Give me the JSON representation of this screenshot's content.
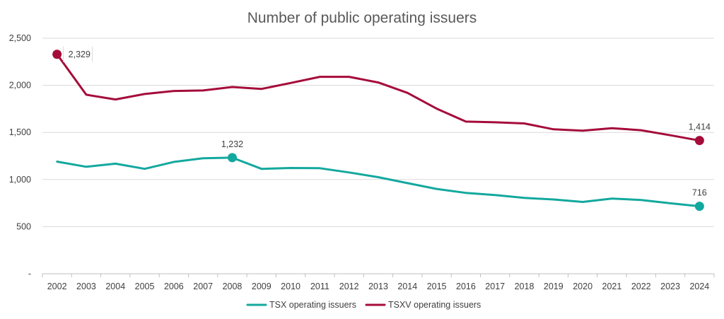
{
  "chart_data": {
    "type": "line",
    "title": "Number of public operating issuers",
    "xlabel": "",
    "ylabel": "",
    "ylim": [
      0,
      2500
    ],
    "y_ticks": [
      0,
      500,
      1000,
      1500,
      2000,
      2500
    ],
    "y_tick_labels": [
      "-",
      "500",
      "1,000",
      "1,500",
      "2,000",
      "2,500"
    ],
    "grid": true,
    "legend_position": "bottom-center",
    "categories": [
      "2002",
      "2003",
      "2004",
      "2005",
      "2006",
      "2007",
      "2008",
      "2009",
      "2010",
      "2011",
      "2012",
      "2013",
      "2014",
      "2015",
      "2016",
      "2017",
      "2018",
      "2019",
      "2020",
      "2021",
      "2022",
      "2023",
      "2024"
    ],
    "series": [
      {
        "name": "TSX operating issuers",
        "color": "#13A89E",
        "values": [
          1190,
          1135,
          1168,
          1113,
          1187,
          1225,
          1232,
          1113,
          1122,
          1120,
          1075,
          1025,
          962,
          900,
          858,
          835,
          805,
          788,
          762,
          797,
          783,
          748,
          716
        ]
      },
      {
        "name": "TSXV operating issuers",
        "color": "#A50C3A",
        "values": [
          2329,
          1900,
          1850,
          1908,
          1940,
          1945,
          1982,
          1962,
          2025,
          2090,
          2090,
          2030,
          1920,
          1752,
          1615,
          1607,
          1595,
          1533,
          1518,
          1545,
          1523,
          1470,
          1414
        ]
      }
    ],
    "annotations": [
      {
        "series": 1,
        "index": 0,
        "text": "2,329",
        "position": "right"
      },
      {
        "series": 1,
        "index": 22,
        "text": "1,414",
        "position": "above"
      },
      {
        "series": 0,
        "index": 6,
        "text": "1,232",
        "position": "above"
      },
      {
        "series": 0,
        "index": 22,
        "text": "716",
        "position": "above"
      }
    ]
  }
}
